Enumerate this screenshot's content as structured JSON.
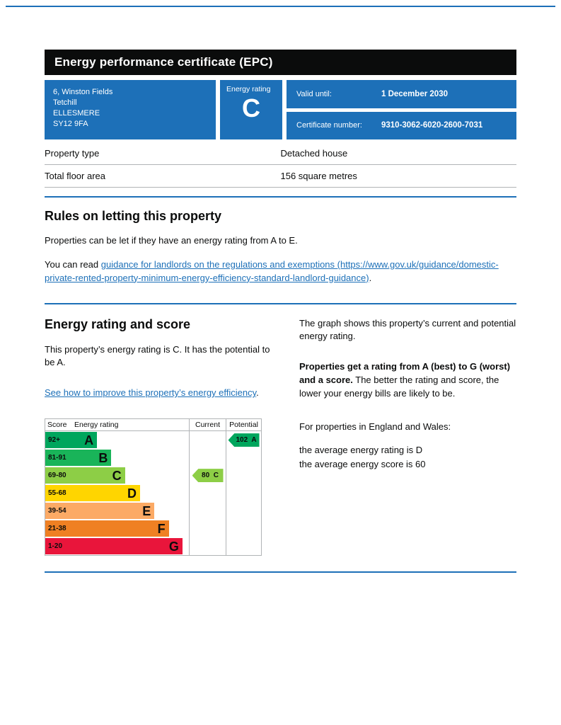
{
  "rules_colors": {
    "accent_blue": "#1d70b8",
    "header_black": "#0b0c0c",
    "border_grey": "#b1b4b6"
  },
  "header": {
    "title": "Energy performance certificate (EPC)"
  },
  "summary": {
    "address": {
      "lines": [
        "6, Winston Fields",
        "Tetchill",
        "ELLESMERE",
        "SY12 9FA"
      ]
    },
    "rating_box": {
      "label": "Energy rating",
      "value": "C"
    },
    "valid_until": {
      "label": "Valid until:",
      "value": "1 December 2030"
    },
    "certificate": {
      "label": "Certificate number:",
      "value": "9310-3062-6020-2600-7031"
    }
  },
  "details": {
    "rows": [
      {
        "label": "Property type",
        "value": "Detached house"
      },
      {
        "label": "Total floor area",
        "value": "156 square metres"
      }
    ]
  },
  "rules": {
    "heading": "Rules on letting this property",
    "para1": "Properties can be let if they have an energy rating from A to E.",
    "para2_prefix": "You can read ",
    "para2_link": "guidance for landlords on the regulations and exemptions (https://www.gov.uk/guidance/domestic-private-rented-property-minimum-energy-efficiency-standard-landlord-guidance)",
    "para2_suffix": "."
  },
  "energy": {
    "heading": "Energy rating and score",
    "para1": "This property’s energy rating is C. It has the potential to be A.",
    "improve_link": "See how to improve this property’s energy efficiency",
    "improve_suffix": ".",
    "right": {
      "para1": "The graph shows this property’s current and potential energy rating.",
      "para2_bold": "Properties get a rating from A (best) to G (worst) and a score.",
      "para2_rest": "The better the rating and score, the lower your energy bills are likely to be.",
      "para3": "For properties in England and Wales:",
      "line1": "the average energy rating is D",
      "line2": "the average energy score is 60"
    }
  },
  "chart_data": {
    "type": "epc-rating-bands",
    "title": "Energy rating and score",
    "headers": {
      "score": "Score",
      "rating": "Energy rating",
      "current": "Current",
      "potential": "Potential"
    },
    "bands": [
      {
        "score": "92+",
        "letter": "A",
        "color": "#00a65d",
        "width_pct": 36
      },
      {
        "score": "81-91",
        "letter": "B",
        "color": "#19b459",
        "width_pct": 46
      },
      {
        "score": "69-80",
        "letter": "C",
        "color": "#8dce46",
        "width_pct": 55.5
      },
      {
        "score": "55-68",
        "letter": "D",
        "color": "#ffd500",
        "width_pct": 66
      },
      {
        "score": "39-54",
        "letter": "E",
        "color": "#fcaa65",
        "width_pct": 76
      },
      {
        "score": "21-38",
        "letter": "F",
        "color": "#ef8023",
        "width_pct": 86
      },
      {
        "score": "1-20",
        "letter": "G",
        "color": "#e9153b",
        "width_pct": 95.5
      }
    ],
    "current": {
      "score": "80",
      "letter": "C",
      "band_index": 2,
      "color": "#8dce46"
    },
    "potential": {
      "score": "102",
      "letter": "A",
      "band_index": 0,
      "color": "#00a65d"
    }
  }
}
